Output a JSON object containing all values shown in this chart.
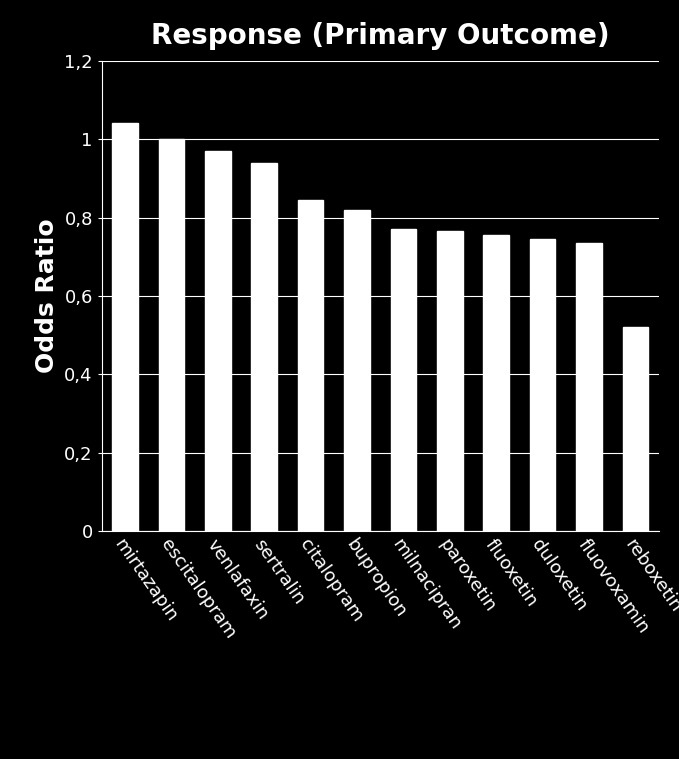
{
  "title": "Response (Primary Outcome)",
  "ylabel": "Odds Ratio",
  "categories": [
    "mirtazapin",
    "escitalopram",
    "venlafaxin",
    "sertralin",
    "citalopram",
    "bupropion",
    "milnacipran",
    "paroxetin",
    "fluoxetin",
    "duloxetin",
    "fluovoxamin",
    "reboxetin"
  ],
  "values": [
    1.04,
    1.0,
    0.97,
    0.94,
    0.845,
    0.82,
    0.77,
    0.765,
    0.755,
    0.745,
    0.735,
    0.52
  ],
  "bar_color": "#ffffff",
  "background_color": "#000000",
  "text_color": "#ffffff",
  "grid_color": "#ffffff",
  "ylim": [
    0,
    1.2
  ],
  "yticks": [
    0,
    0.2,
    0.4,
    0.6,
    0.8,
    1.0,
    1.2
  ],
  "ytick_labels": [
    "0",
    "0,2",
    "0,4",
    "0,6",
    "0,8",
    "1",
    "1,2"
  ],
  "title_fontsize": 20,
  "ylabel_fontsize": 18,
  "tick_fontsize": 13,
  "bar_width": 0.55
}
